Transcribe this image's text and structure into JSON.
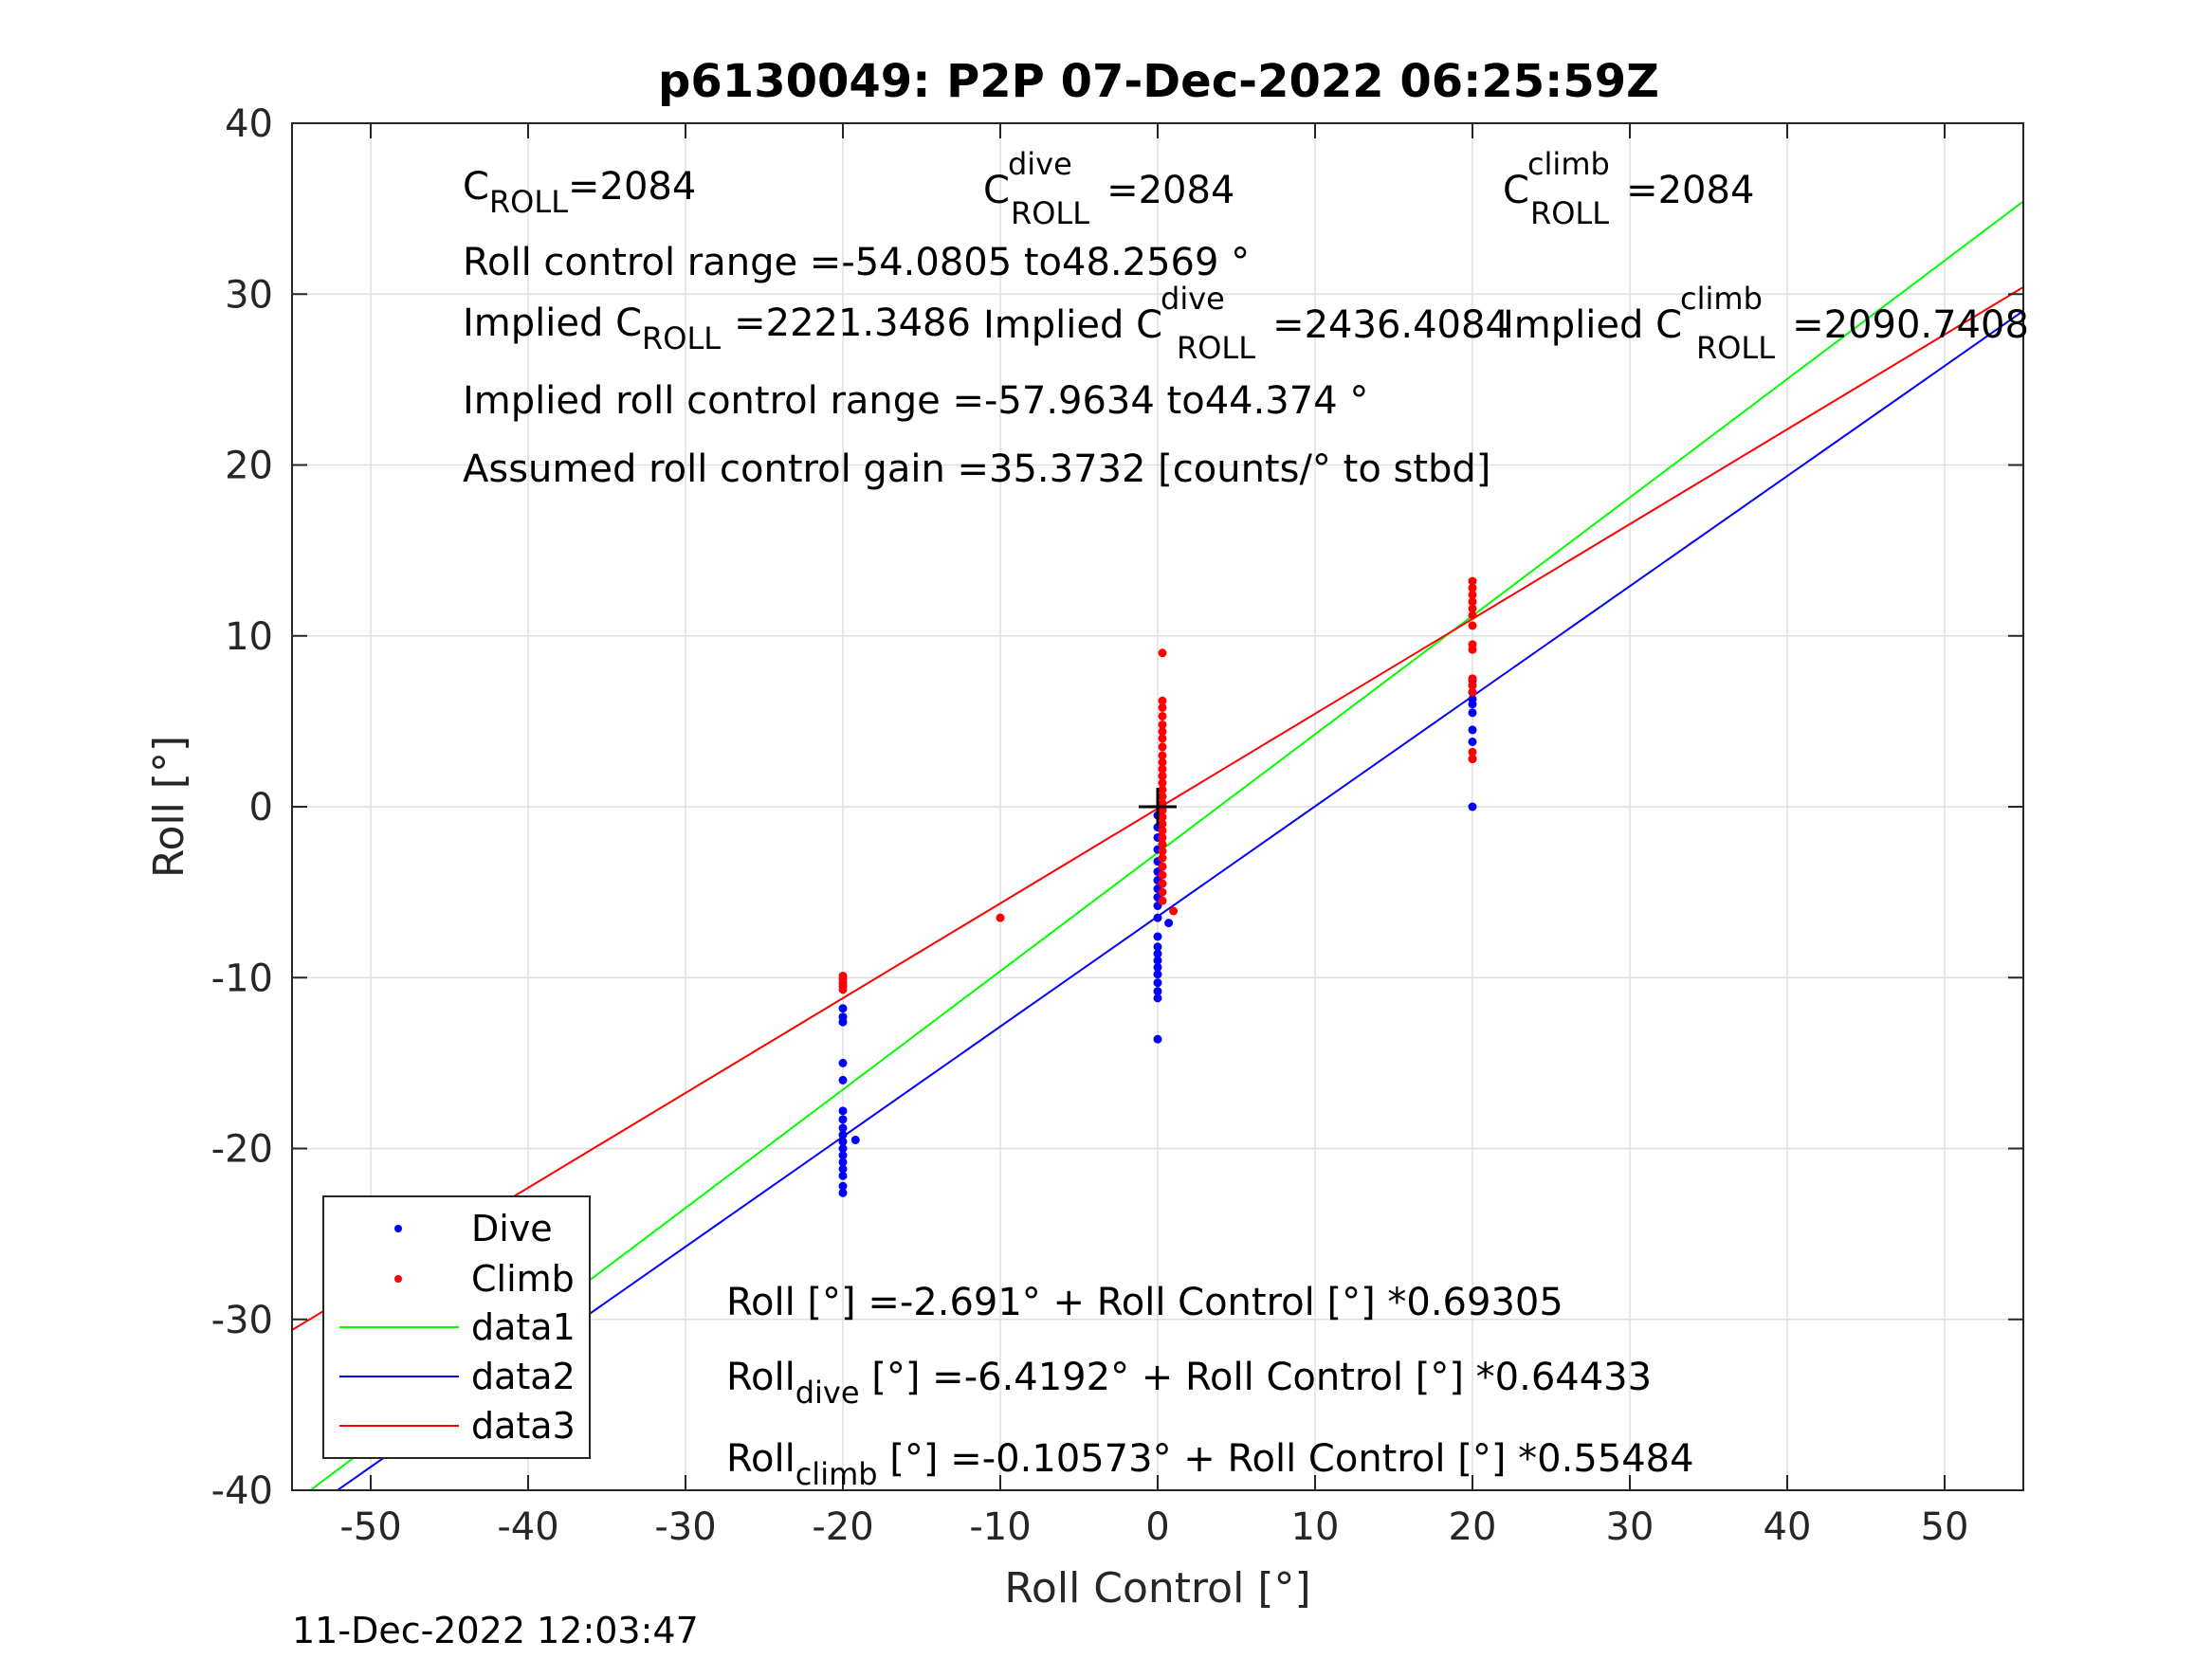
{
  "chart_data": {
    "type": "scatter",
    "title": "p6130049: P2P 07-Dec-2022 06:25:59Z",
    "xlabel": "Roll Control [°]",
    "ylabel": "Roll [°]",
    "xlim": [
      -55,
      55
    ],
    "ylim": [
      -40,
      40
    ],
    "xticks": [
      -50,
      -40,
      -30,
      -20,
      -10,
      0,
      10,
      20,
      30,
      40,
      50
    ],
    "yticks": [
      -40,
      -30,
      -20,
      -10,
      0,
      10,
      20,
      30,
      40
    ],
    "grid": true,
    "legend": {
      "position": "bottom-left",
      "entries": [
        "Dive",
        "Climb",
        "data1",
        "data2",
        "data3"
      ]
    },
    "colors": {
      "dive": "#0000ff",
      "climb": "#ff0000",
      "data1": "#00ff00",
      "data2": "#0000ff",
      "data3": "#ff0000"
    },
    "series": [
      {
        "name": "Dive",
        "kind": "points",
        "points": [
          [
            -20,
            -11.8
          ],
          [
            -20,
            -12.3
          ],
          [
            -20,
            -12.6
          ],
          [
            -20,
            -15
          ],
          [
            -20,
            -16
          ],
          [
            -20,
            -17.8
          ],
          [
            -20,
            -18.3
          ],
          [
            -20,
            -18.8
          ],
          [
            -20,
            -19.2
          ],
          [
            -20,
            -19.6
          ],
          [
            -20,
            -20
          ],
          [
            -20,
            -20.4
          ],
          [
            -20,
            -20.8
          ],
          [
            -20,
            -21.2
          ],
          [
            -20,
            -21.6
          ],
          [
            -20,
            -22.2
          ],
          [
            -20,
            -22.6
          ],
          [
            -19.2,
            -19.5
          ],
          [
            0,
            -13.6
          ],
          [
            0,
            -11.2
          ],
          [
            0,
            -10.8
          ],
          [
            0,
            -10.3
          ],
          [
            0,
            -9.8
          ],
          [
            0,
            -9.4
          ],
          [
            0,
            -9
          ],
          [
            0,
            -8.6
          ],
          [
            0,
            -8.2
          ],
          [
            0,
            -7.6
          ],
          [
            0,
            -6.5
          ],
          [
            0,
            -5.8
          ],
          [
            0,
            -5.3
          ],
          [
            0,
            -4.8
          ],
          [
            0,
            -4.3
          ],
          [
            0,
            -3.8
          ],
          [
            0,
            -3.2
          ],
          [
            0,
            -2.5
          ],
          [
            0,
            -1.8
          ],
          [
            0,
            -1.2
          ],
          [
            0,
            -0.5
          ],
          [
            0.7,
            -6.8
          ],
          [
            0.3,
            1.8
          ],
          [
            20,
            0
          ],
          [
            20,
            2.8
          ],
          [
            20,
            3.8
          ],
          [
            20,
            4.5
          ],
          [
            20,
            5.5
          ],
          [
            20,
            6
          ],
          [
            20,
            6.3
          ],
          [
            20,
            6.7
          ],
          [
            20,
            7.1
          ],
          [
            20,
            7.4
          ]
        ]
      },
      {
        "name": "Climb",
        "kind": "points",
        "points": [
          [
            -20,
            -9.9
          ],
          [
            -20,
            -10.1
          ],
          [
            -20,
            -10.3
          ],
          [
            -20,
            -10.5
          ],
          [
            -20,
            -10.7
          ],
          [
            -10,
            -6.5
          ],
          [
            0.3,
            9
          ],
          [
            0.3,
            6.2
          ],
          [
            0.3,
            5.8
          ],
          [
            0.3,
            5.3
          ],
          [
            0.3,
            4.8
          ],
          [
            0.3,
            4.4
          ],
          [
            0.3,
            4
          ],
          [
            0.3,
            3.5
          ],
          [
            0.3,
            3
          ],
          [
            0.3,
            2.6
          ],
          [
            0.3,
            2.2
          ],
          [
            0.3,
            1.8
          ],
          [
            0.3,
            1.4
          ],
          [
            0.3,
            1
          ],
          [
            0.3,
            0.6
          ],
          [
            0.3,
            0.2
          ],
          [
            0.3,
            -0.2
          ],
          [
            0.3,
            -0.6
          ],
          [
            0.3,
            -1
          ],
          [
            0.3,
            -1.4
          ],
          [
            0.3,
            -1.8
          ],
          [
            0.3,
            -2.2
          ],
          [
            0.3,
            -2.6
          ],
          [
            0.3,
            -3
          ],
          [
            0.3,
            -3.5
          ],
          [
            0.3,
            -4
          ],
          [
            0.3,
            -4.5
          ],
          [
            0.3,
            -5
          ],
          [
            0.3,
            -5.5
          ],
          [
            1,
            -6.1
          ],
          [
            20,
            13.2
          ],
          [
            20,
            12.8
          ],
          [
            20,
            12.4
          ],
          [
            20,
            12
          ],
          [
            20,
            11.6
          ],
          [
            20,
            11.2
          ],
          [
            20,
            10.6
          ],
          [
            20,
            9.5
          ],
          [
            20,
            9.2
          ],
          [
            20,
            7.5
          ],
          [
            20,
            7.1
          ],
          [
            20,
            6.7
          ],
          [
            20,
            3.2
          ],
          [
            20,
            2.8
          ]
        ]
      },
      {
        "name": "data1",
        "kind": "line",
        "intercept": -2.691,
        "slope": 0.69305
      },
      {
        "name": "data2",
        "kind": "line",
        "intercept": -6.4192,
        "slope": 0.64433
      },
      {
        "name": "data3",
        "kind": "line",
        "intercept": -0.10573,
        "slope": 0.55484
      }
    ],
    "markers": [
      {
        "symbol": "+",
        "x": 0,
        "y": 0
      }
    ],
    "annotations": {
      "c_roll": "=2084",
      "c_roll_dive": "=2084",
      "c_roll_climb": "=2084",
      "control_range": "Roll control range =-54.0805 to48.2569 °",
      "implied_c_roll": "=2221.3486",
      "implied_c_roll_dive": "=2436.4084",
      "implied_c_roll_climb": "=2090.7408",
      "implied_range": "Implied roll control range =-57.9634 to44.374 °",
      "gain": "Assumed roll control gain =35.3732 [counts/° to stbd]",
      "fit_all": "Roll [°] =-2.691° + Roll Control [°] *0.69305",
      "fit_dive_rest": " [°] =-6.4192° + Roll Control [°] *0.64433",
      "fit_climb_rest": " [°] =-0.10573° + Roll Control [°] *0.55484"
    },
    "timestamp": "11-Dec-2022 12:03:47"
  }
}
